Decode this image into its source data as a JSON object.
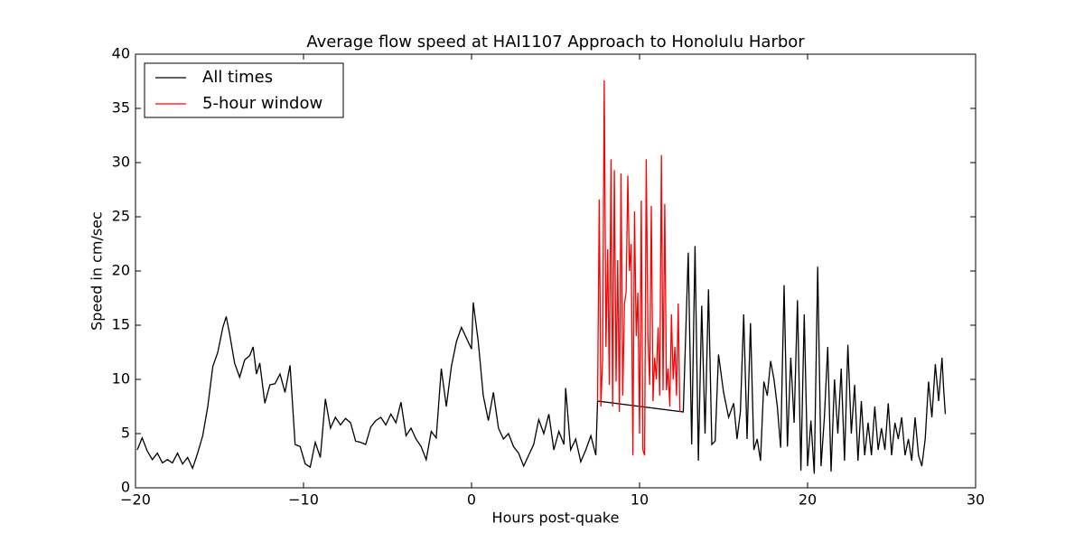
{
  "chart_data": {
    "type": "line",
    "title": "Average flow speed at HAI1107   Approach to Honolulu Harbor",
    "xlabel": "Hours post-quake",
    "ylabel": "Speed in cm/sec",
    "xlim": [
      -20,
      30
    ],
    "ylim": [
      0,
      40
    ],
    "xticks": [
      {
        "value": -20,
        "label": "−20"
      },
      {
        "value": -10,
        "label": "−10"
      },
      0,
      10,
      20,
      30
    ],
    "yticks": [
      0,
      5,
      10,
      15,
      20,
      25,
      30,
      35,
      40
    ],
    "legend": "upper left",
    "series": [
      {
        "name": "All times",
        "color": "#000000",
        "x": [
          -19.9,
          -19.6,
          -19.3,
          -19.0,
          -18.7,
          -18.4,
          -18.1,
          -17.8,
          -17.5,
          -17.2,
          -16.9,
          -16.6,
          -16.3,
          -16.0,
          -15.7,
          -15.4,
          -15.1,
          -14.8,
          -14.6,
          -14.4,
          -14.1,
          -13.8,
          -13.5,
          -13.2,
          -13.0,
          -12.8,
          -12.6,
          -12.3,
          -12.0,
          -11.7,
          -11.4,
          -11.1,
          -10.8,
          -10.5,
          -10.2,
          -9.9,
          -9.6,
          -9.3,
          -9.0,
          -8.7,
          -8.4,
          -8.1,
          -7.8,
          -7.5,
          -7.2,
          -6.9,
          -6.6,
          -6.3,
          -6.0,
          -5.7,
          -5.4,
          -5.1,
          -4.8,
          -4.5,
          -4.2,
          -3.9,
          -3.6,
          -3.3,
          -3.0,
          -2.7,
          -2.4,
          -2.1,
          -1.8,
          -1.5,
          -1.2,
          -0.9,
          -0.6,
          -0.3,
          0.0,
          0.1,
          0.4,
          0.7,
          1.0,
          1.3,
          1.6,
          1.9,
          2.2,
          2.5,
          2.8,
          3.1,
          3.4,
          3.7,
          4.0,
          4.3,
          4.6,
          4.9,
          5.2,
          5.5,
          5.6,
          5.9,
          6.2,
          6.5,
          6.8,
          7.1,
          7.4,
          7.5,
          12.6,
          12.9,
          13.1,
          13.3,
          13.5,
          13.7,
          13.9,
          14.1,
          14.3,
          14.5,
          14.7,
          15.0,
          15.3,
          15.6,
          15.8,
          16.0,
          16.2,
          16.4,
          16.6,
          16.8,
          17.0,
          17.2,
          17.4,
          17.6,
          17.8,
          18.0,
          18.2,
          18.4,
          18.6,
          18.8,
          19.0,
          19.2,
          19.4,
          19.6,
          19.8,
          20.0,
          20.2,
          20.4,
          20.6,
          20.8,
          21.0,
          21.2,
          21.4,
          21.6,
          21.8,
          22.0,
          22.2,
          22.4,
          22.6,
          22.8,
          23.0,
          23.2,
          23.4,
          23.6,
          23.8,
          24.0,
          24.2,
          24.4,
          24.6,
          24.8,
          25.0,
          25.2,
          25.4,
          25.6,
          25.8,
          26.0,
          26.2,
          26.4,
          26.6,
          26.8,
          27.0,
          27.2,
          27.4,
          27.6,
          27.8,
          28.0,
          28.1,
          28.2
        ],
        "values": [
          3.5,
          4.6,
          3.4,
          2.6,
          3.2,
          2.3,
          2.6,
          2.3,
          3.2,
          2.2,
          2.8,
          1.8,
          3.2,
          4.8,
          7.5,
          11.2,
          12.5,
          14.8,
          15.8,
          14.2,
          11.5,
          10.2,
          11.8,
          12.2,
          13.0,
          10.5,
          11.5,
          7.8,
          9.5,
          9.6,
          10.5,
          8.8,
          11.3,
          4.0,
          3.8,
          2.2,
          1.9,
          4.2,
          2.8,
          8.2,
          5.5,
          6.5,
          5.8,
          6.4,
          6.0,
          4.3,
          4.2,
          4.0,
          5.6,
          6.2,
          6.5,
          5.8,
          6.8,
          6.0,
          7.9,
          4.8,
          5.5,
          4.5,
          3.8,
          2.6,
          5.2,
          4.6,
          11.0,
          7.5,
          11.2,
          13.5,
          14.8,
          13.8,
          12.8,
          17.1,
          13.5,
          8.5,
          6.2,
          8.8,
          5.5,
          4.5,
          5.0,
          3.8,
          3.2,
          2.0,
          3.0,
          4.0,
          6.3,
          5.0,
          6.8,
          3.5,
          5.2,
          4.0,
          9.2,
          3.5,
          4.5,
          2.4,
          3.5,
          4.8,
          3.0,
          8.0,
          7.0,
          21.7,
          4.0,
          22.3,
          2.5,
          16.8,
          5.0,
          18.3,
          4.0,
          4.3,
          12.3,
          8.8,
          6.5,
          7.8,
          4.5,
          7.0,
          16.0,
          4.5,
          15.2,
          3.5,
          4.5,
          2.5,
          9.8,
          8.5,
          11.7,
          10.0,
          7.5,
          3.7,
          18.7,
          3.8,
          12.0,
          6.0,
          17.3,
          1.6,
          16.0,
          2.0,
          6.2,
          1.3,
          20.4,
          2.0,
          6.5,
          13.0,
          1.5,
          10.0,
          5.0,
          11.0,
          2.5,
          13.2,
          5.0,
          9.5,
          2.5,
          8.0,
          3.0,
          6.0,
          3.0,
          7.5,
          3.5,
          5.5,
          3.5,
          7.8,
          3.0,
          6.0,
          4.5,
          6.5,
          3.0,
          4.5,
          2.5,
          6.5,
          3.0,
          2.0,
          4.5,
          9.8,
          6.5,
          11.4,
          8.0,
          12.0,
          9.0,
          6.8
        ]
      },
      {
        "name": "5-hour window",
        "color": "#ff0000",
        "x": [
          7.5,
          7.6,
          7.7,
          7.8,
          7.9,
          8.0,
          8.1,
          8.2,
          8.3,
          8.4,
          8.5,
          8.6,
          8.7,
          8.8,
          8.9,
          9.0,
          9.1,
          9.2,
          9.3,
          9.4,
          9.5,
          9.6,
          9.7,
          9.8,
          9.9,
          10.0,
          10.1,
          10.2,
          10.3,
          10.4,
          10.5,
          10.6,
          10.7,
          10.8,
          10.9,
          11.0,
          11.1,
          11.2,
          11.3,
          11.4,
          11.5,
          11.6,
          11.7,
          11.8,
          11.9,
          12.0,
          12.1,
          12.2,
          12.3,
          12.4
        ],
        "values": [
          8.0,
          26.6,
          7.5,
          12.0,
          37.6,
          13.0,
          22.0,
          9.5,
          30.3,
          7.5,
          29.3,
          9.8,
          21.0,
          7.0,
          29.0,
          8.5,
          17.0,
          18.0,
          28.8,
          20.0,
          22.5,
          3.0,
          25.5,
          14.0,
          18.0,
          5.0,
          26.5,
          3.5,
          3.0,
          30.3,
          14.0,
          9.5,
          26.0,
          8.0,
          12.0,
          10.0,
          14.8,
          8.5,
          30.7,
          9.0,
          26.2,
          9.0,
          11.0,
          7.5,
          16.0,
          10.0,
          13.0,
          8.5,
          17.0,
          7.0
        ]
      }
    ]
  }
}
